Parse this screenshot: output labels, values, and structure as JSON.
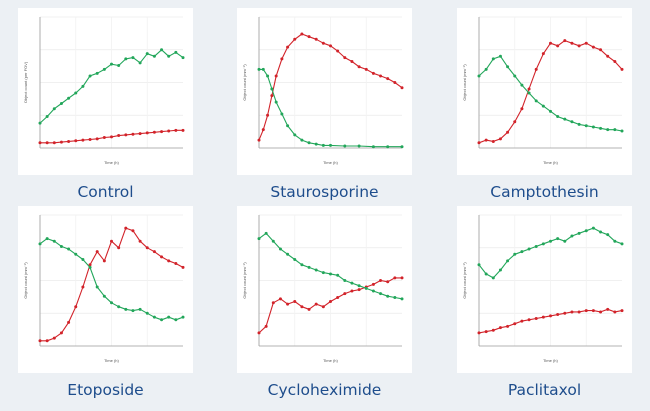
{
  "colors": {
    "red": "#d2232a",
    "green": "#22a65a",
    "caption": "#1e4d8c",
    "background": "#ecf0f4",
    "card": "#ffffff"
  },
  "chart_data": [
    {
      "type": "line",
      "title": "Control",
      "xlabel": "Time (h)",
      "ylabel": "Object count (per FOV)",
      "ylim": [
        0,
        1.0
      ],
      "series": [
        {
          "color": "red",
          "x": [
            0,
            0.05,
            0.1,
            0.15,
            0.2,
            0.25,
            0.3,
            0.35,
            0.4,
            0.45,
            0.5,
            0.55,
            0.6,
            0.65,
            0.7,
            0.75,
            0.8,
            0.85,
            0.9,
            0.95,
            1.0
          ],
          "values": [
            0.04,
            0.04,
            0.04,
            0.045,
            0.05,
            0.055,
            0.06,
            0.065,
            0.07,
            0.08,
            0.085,
            0.095,
            0.1,
            0.105,
            0.11,
            0.115,
            0.12,
            0.125,
            0.13,
            0.135,
            0.135
          ]
        },
        {
          "color": "green",
          "x": [
            0,
            0.05,
            0.1,
            0.15,
            0.2,
            0.25,
            0.3,
            0.35,
            0.4,
            0.45,
            0.5,
            0.55,
            0.6,
            0.65,
            0.7,
            0.75,
            0.8,
            0.85,
            0.9,
            0.95,
            1.0
          ],
          "values": [
            0.19,
            0.24,
            0.3,
            0.34,
            0.38,
            0.42,
            0.47,
            0.55,
            0.57,
            0.6,
            0.64,
            0.63,
            0.68,
            0.69,
            0.65,
            0.72,
            0.7,
            0.75,
            0.7,
            0.73,
            0.69
          ]
        }
      ]
    },
    {
      "type": "line",
      "title": "Staurosporine",
      "xlabel": "Time (h)",
      "ylabel": "Object count (mm⁻²)",
      "ylim": [
        0,
        1.0
      ],
      "series": [
        {
          "color": "red",
          "x": [
            0,
            0.03,
            0.06,
            0.09,
            0.12,
            0.16,
            0.2,
            0.25,
            0.3,
            0.35,
            0.4,
            0.45,
            0.5,
            0.55,
            0.6,
            0.65,
            0.7,
            0.75,
            0.8,
            0.85,
            0.9,
            0.95,
            1.0
          ],
          "values": [
            0.06,
            0.14,
            0.25,
            0.4,
            0.55,
            0.68,
            0.77,
            0.83,
            0.87,
            0.85,
            0.83,
            0.8,
            0.78,
            0.74,
            0.69,
            0.66,
            0.62,
            0.6,
            0.57,
            0.55,
            0.53,
            0.5,
            0.46
          ]
        },
        {
          "color": "green",
          "x": [
            0,
            0.03,
            0.06,
            0.09,
            0.12,
            0.16,
            0.2,
            0.25,
            0.3,
            0.35,
            0.4,
            0.45,
            0.5,
            0.6,
            0.7,
            0.8,
            0.9,
            1.0
          ],
          "values": [
            0.6,
            0.6,
            0.55,
            0.45,
            0.35,
            0.26,
            0.17,
            0.1,
            0.06,
            0.04,
            0.03,
            0.02,
            0.02,
            0.015,
            0.015,
            0.01,
            0.01,
            0.01
          ]
        }
      ]
    },
    {
      "type": "line",
      "title": "Camptothesin",
      "xlabel": "Time (h)",
      "ylabel": "Object count (mm⁻²)",
      "ylim": [
        0,
        1.0
      ],
      "series": [
        {
          "color": "red",
          "x": [
            0,
            0.05,
            0.1,
            0.15,
            0.2,
            0.25,
            0.3,
            0.35,
            0.4,
            0.45,
            0.5,
            0.55,
            0.6,
            0.65,
            0.7,
            0.75,
            0.8,
            0.85,
            0.9,
            0.95,
            1.0
          ],
          "values": [
            0.04,
            0.06,
            0.05,
            0.07,
            0.12,
            0.2,
            0.3,
            0.45,
            0.6,
            0.72,
            0.8,
            0.78,
            0.82,
            0.8,
            0.78,
            0.8,
            0.77,
            0.75,
            0.7,
            0.66,
            0.6
          ]
        },
        {
          "color": "green",
          "x": [
            0,
            0.05,
            0.1,
            0.15,
            0.2,
            0.25,
            0.3,
            0.35,
            0.4,
            0.45,
            0.5,
            0.55,
            0.6,
            0.65,
            0.7,
            0.75,
            0.8,
            0.85,
            0.9,
            0.95,
            1.0
          ],
          "values": [
            0.55,
            0.6,
            0.68,
            0.7,
            0.62,
            0.55,
            0.48,
            0.42,
            0.36,
            0.32,
            0.28,
            0.24,
            0.22,
            0.2,
            0.18,
            0.17,
            0.16,
            0.15,
            0.14,
            0.14,
            0.13
          ]
        }
      ]
    },
    {
      "type": "line",
      "title": "Etoposide",
      "xlabel": "Time (h)",
      "ylabel": "Object count (mm⁻²)",
      "ylim": [
        0,
        1.0
      ],
      "series": [
        {
          "color": "red",
          "x": [
            0,
            0.05,
            0.1,
            0.15,
            0.2,
            0.25,
            0.3,
            0.35,
            0.4,
            0.45,
            0.5,
            0.55,
            0.6,
            0.65,
            0.7,
            0.75,
            0.8,
            0.85,
            0.9,
            0.95,
            1.0
          ],
          "values": [
            0.04,
            0.04,
            0.06,
            0.1,
            0.18,
            0.3,
            0.45,
            0.62,
            0.72,
            0.65,
            0.8,
            0.75,
            0.9,
            0.88,
            0.8,
            0.75,
            0.72,
            0.68,
            0.65,
            0.63,
            0.6
          ]
        },
        {
          "color": "green",
          "x": [
            0,
            0.05,
            0.1,
            0.15,
            0.2,
            0.25,
            0.3,
            0.35,
            0.4,
            0.45,
            0.5,
            0.55,
            0.6,
            0.65,
            0.7,
            0.75,
            0.8,
            0.85,
            0.9,
            0.95,
            1.0
          ],
          "values": [
            0.78,
            0.82,
            0.8,
            0.76,
            0.74,
            0.7,
            0.66,
            0.6,
            0.45,
            0.38,
            0.33,
            0.3,
            0.28,
            0.27,
            0.28,
            0.25,
            0.22,
            0.2,
            0.22,
            0.2,
            0.22
          ]
        }
      ]
    },
    {
      "type": "line",
      "title": "Cycloheximide",
      "xlabel": "Time (h)",
      "ylabel": "Object count (mm⁻²)",
      "ylim": [
        0,
        1.0
      ],
      "series": [
        {
          "color": "red",
          "x": [
            0,
            0.05,
            0.1,
            0.15,
            0.2,
            0.25,
            0.3,
            0.35,
            0.4,
            0.45,
            0.5,
            0.55,
            0.6,
            0.65,
            0.7,
            0.75,
            0.8,
            0.85,
            0.9,
            0.95,
            1.0
          ],
          "values": [
            0.1,
            0.15,
            0.33,
            0.36,
            0.32,
            0.34,
            0.3,
            0.28,
            0.32,
            0.3,
            0.34,
            0.37,
            0.4,
            0.42,
            0.43,
            0.45,
            0.47,
            0.5,
            0.49,
            0.52,
            0.52
          ]
        },
        {
          "color": "green",
          "x": [
            0,
            0.05,
            0.1,
            0.15,
            0.2,
            0.25,
            0.3,
            0.35,
            0.4,
            0.45,
            0.5,
            0.55,
            0.6,
            0.65,
            0.7,
            0.75,
            0.8,
            0.85,
            0.9,
            0.95,
            1.0
          ],
          "values": [
            0.82,
            0.86,
            0.8,
            0.74,
            0.7,
            0.66,
            0.62,
            0.6,
            0.58,
            0.56,
            0.55,
            0.54,
            0.5,
            0.48,
            0.46,
            0.44,
            0.42,
            0.4,
            0.38,
            0.37,
            0.36
          ]
        }
      ]
    },
    {
      "type": "line",
      "title": "Paclitaxol",
      "xlabel": "Time (h)",
      "ylabel": "Object count (mm⁻²)",
      "ylim": [
        0,
        1.0
      ],
      "series": [
        {
          "color": "red",
          "x": [
            0,
            0.05,
            0.1,
            0.15,
            0.2,
            0.25,
            0.3,
            0.35,
            0.4,
            0.45,
            0.5,
            0.55,
            0.6,
            0.65,
            0.7,
            0.75,
            0.8,
            0.85,
            0.9,
            0.95,
            1.0
          ],
          "values": [
            0.1,
            0.11,
            0.12,
            0.14,
            0.15,
            0.17,
            0.19,
            0.2,
            0.21,
            0.22,
            0.23,
            0.24,
            0.25,
            0.26,
            0.26,
            0.27,
            0.27,
            0.26,
            0.28,
            0.26,
            0.27
          ]
        },
        {
          "color": "green",
          "x": [
            0,
            0.05,
            0.1,
            0.15,
            0.2,
            0.25,
            0.3,
            0.35,
            0.4,
            0.45,
            0.5,
            0.55,
            0.6,
            0.65,
            0.7,
            0.75,
            0.8,
            0.85,
            0.9,
            0.95,
            1.0
          ],
          "values": [
            0.62,
            0.55,
            0.52,
            0.58,
            0.65,
            0.7,
            0.72,
            0.74,
            0.76,
            0.78,
            0.8,
            0.82,
            0.8,
            0.84,
            0.86,
            0.88,
            0.9,
            0.87,
            0.85,
            0.8,
            0.78
          ]
        }
      ]
    }
  ]
}
